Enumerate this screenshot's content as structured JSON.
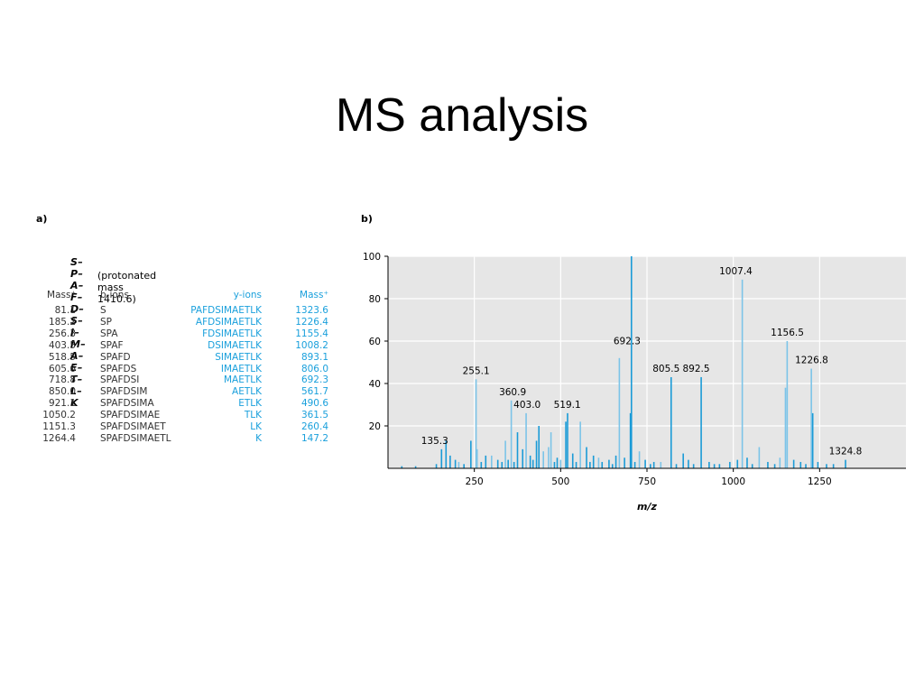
{
  "slide": {
    "title": "MS analysis"
  },
  "panel_a": {
    "label": "a)",
    "peptide": "S–P–A–F–D–S–I–M–A–E–T–L–K",
    "protonated_mass": "(protonated mass 1410.6)",
    "headers": {
      "b_mass": "Mass⁺",
      "b_ions": "b-ions",
      "y_ions": "y-ions",
      "y_mass": "Mass⁺"
    },
    "rows": [
      {
        "b_mass": "81.1",
        "b_ion": "S",
        "y_ion": "PAFDSIMAETLK",
        "y_mass": "1323.6"
      },
      {
        "b_mass": "185.2",
        "b_ion": "SP",
        "y_ion": "AFDSIMAETLK",
        "y_mass": "1226.4"
      },
      {
        "b_mass": "256.3",
        "b_ion": "SPA",
        "y_ion": "FDSIMAETLK",
        "y_mass": "1155.4"
      },
      {
        "b_mass": "403.5",
        "b_ion": "SPAF",
        "y_ion": "DSIMAETLK",
        "y_mass": "1008.2"
      },
      {
        "b_mass": "518.5",
        "b_ion": "SPAFD",
        "y_ion": "SIMAETLK",
        "y_mass": "893.1"
      },
      {
        "b_mass": "605.6",
        "b_ion": "SPAFDS",
        "y_ion": "IMAETLK",
        "y_mass": "806.0"
      },
      {
        "b_mass": "718.8",
        "b_ion": "SPAFDSI",
        "y_ion": "MAETLK",
        "y_mass": "692.3"
      },
      {
        "b_mass": "850.0",
        "b_ion": "SPAFDSIM",
        "y_ion": "AETLK",
        "y_mass": "561.7"
      },
      {
        "b_mass": "921.1",
        "b_ion": "SPAFDSIMA",
        "y_ion": "ETLK",
        "y_mass": "490.6"
      },
      {
        "b_mass": "1050.2",
        "b_ion": "SPAFDSIMAE",
        "y_ion": "TLK",
        "y_mass": "361.5"
      },
      {
        "b_mass": "1151.3",
        "b_ion": "SPAFDSIMAET",
        "y_ion": "LK",
        "y_mass": "260.4"
      },
      {
        "b_mass": "1264.4",
        "b_ion": "SPAFDSIMAETL",
        "y_ion": "K",
        "y_mass": "147.2"
      }
    ]
  },
  "chart_data": {
    "type": "bar",
    "panel_label": "b)",
    "title": "",
    "xlabel": "m/z",
    "ylabel": "",
    "xlim": [
      0,
      1500
    ],
    "ylim": [
      0,
      100
    ],
    "xticks": [
      250,
      500,
      750,
      1000,
      1250
    ],
    "yticks": [
      20,
      40,
      60,
      80,
      100
    ],
    "grid": true,
    "colors": {
      "bar": "#1a9bd7",
      "bar_light": "#7cc4e8",
      "plot_bg": "#e6e6e6",
      "grid": "#ffffff"
    },
    "labeled_peaks": [
      {
        "x": 135.3,
        "y": 9,
        "label": "135.3"
      },
      {
        "x": 255.1,
        "y": 42,
        "label": "255.1"
      },
      {
        "x": 360.9,
        "y": 32,
        "label": "360.9"
      },
      {
        "x": 403.0,
        "y": 26,
        "label": "403.0"
      },
      {
        "x": 519.1,
        "y": 26,
        "label": "519.1"
      },
      {
        "x": 692.3,
        "y": 56,
        "label": "692.3"
      },
      {
        "x": 805.5,
        "y": 43,
        "label": "805.5"
      },
      {
        "x": 892.5,
        "y": 43,
        "label": "892.5"
      },
      {
        "x": 1007.4,
        "y": 89,
        "label": "1007.4"
      },
      {
        "x": 1156.5,
        "y": 60,
        "label": "1156.5"
      },
      {
        "x": 1226.8,
        "y": 47,
        "label": "1226.8"
      },
      {
        "x": 1324.8,
        "y": 4,
        "label": "1324.8"
      }
    ],
    "peaks": [
      {
        "x": 705,
        "y": 100,
        "tone": "dark"
      },
      {
        "x": 702,
        "y": 26,
        "tone": "dark"
      },
      {
        "x": 670,
        "y": 52,
        "tone": "light"
      },
      {
        "x": 1026,
        "y": 89,
        "tone": "light"
      },
      {
        "x": 1156,
        "y": 60,
        "tone": "light"
      },
      {
        "x": 1151,
        "y": 38,
        "tone": "light"
      },
      {
        "x": 1226,
        "y": 47,
        "tone": "light"
      },
      {
        "x": 1230,
        "y": 26,
        "tone": "dark"
      },
      {
        "x": 820,
        "y": 43,
        "tone": "dark"
      },
      {
        "x": 907,
        "y": 43,
        "tone": "dark"
      },
      {
        "x": 255,
        "y": 42,
        "tone": "light"
      },
      {
        "x": 357,
        "y": 32,
        "tone": "light"
      },
      {
        "x": 400,
        "y": 26,
        "tone": "light"
      },
      {
        "x": 520,
        "y": 26,
        "tone": "dark"
      },
      {
        "x": 515,
        "y": 22,
        "tone": "dark"
      },
      {
        "x": 557,
        "y": 22,
        "tone": "light"
      },
      {
        "x": 375,
        "y": 17,
        "tone": "dark"
      },
      {
        "x": 437,
        "y": 20,
        "tone": "dark"
      },
      {
        "x": 430,
        "y": 13,
        "tone": "dark"
      },
      {
        "x": 465,
        "y": 10,
        "tone": "light"
      },
      {
        "x": 472,
        "y": 17,
        "tone": "light"
      },
      {
        "x": 340,
        "y": 13,
        "tone": "light"
      },
      {
        "x": 240,
        "y": 13,
        "tone": "dark"
      },
      {
        "x": 258,
        "y": 9,
        "tone": "light"
      },
      {
        "x": 168,
        "y": 13,
        "tone": "dark"
      },
      {
        "x": 155,
        "y": 9,
        "tone": "dark"
      },
      {
        "x": 180,
        "y": 6,
        "tone": "dark"
      },
      {
        "x": 195,
        "y": 4,
        "tone": "dark"
      },
      {
        "x": 283,
        "y": 6,
        "tone": "dark"
      },
      {
        "x": 300,
        "y": 6,
        "tone": "light"
      },
      {
        "x": 318,
        "y": 4,
        "tone": "dark"
      },
      {
        "x": 390,
        "y": 9,
        "tone": "dark"
      },
      {
        "x": 412,
        "y": 6,
        "tone": "dark"
      },
      {
        "x": 450,
        "y": 8,
        "tone": "light"
      },
      {
        "x": 490,
        "y": 5,
        "tone": "dark"
      },
      {
        "x": 535,
        "y": 7,
        "tone": "dark"
      },
      {
        "x": 575,
        "y": 10,
        "tone": "dark"
      },
      {
        "x": 595,
        "y": 6,
        "tone": "dark"
      },
      {
        "x": 610,
        "y": 5,
        "tone": "light"
      },
      {
        "x": 640,
        "y": 4,
        "tone": "dark"
      },
      {
        "x": 660,
        "y": 6,
        "tone": "dark"
      },
      {
        "x": 685,
        "y": 5,
        "tone": "dark"
      },
      {
        "x": 728,
        "y": 8,
        "tone": "light"
      },
      {
        "x": 745,
        "y": 4,
        "tone": "dark"
      },
      {
        "x": 770,
        "y": 3,
        "tone": "dark"
      },
      {
        "x": 790,
        "y": 3,
        "tone": "light"
      },
      {
        "x": 855,
        "y": 7,
        "tone": "dark"
      },
      {
        "x": 870,
        "y": 4,
        "tone": "dark"
      },
      {
        "x": 930,
        "y": 3,
        "tone": "dark"
      },
      {
        "x": 960,
        "y": 2,
        "tone": "dark"
      },
      {
        "x": 990,
        "y": 3,
        "tone": "dark"
      },
      {
        "x": 1012,
        "y": 4,
        "tone": "dark"
      },
      {
        "x": 1040,
        "y": 5,
        "tone": "dark"
      },
      {
        "x": 1075,
        "y": 10,
        "tone": "light"
      },
      {
        "x": 1100,
        "y": 3,
        "tone": "dark"
      },
      {
        "x": 1135,
        "y": 5,
        "tone": "light"
      },
      {
        "x": 1175,
        "y": 4,
        "tone": "dark"
      },
      {
        "x": 1195,
        "y": 3,
        "tone": "dark"
      },
      {
        "x": 1245,
        "y": 3,
        "tone": "dark"
      },
      {
        "x": 1270,
        "y": 2,
        "tone": "dark"
      },
      {
        "x": 1325,
        "y": 4,
        "tone": "dark"
      },
      {
        "x": 40,
        "y": 1,
        "tone": "dark"
      },
      {
        "x": 80,
        "y": 1,
        "tone": "dark"
      },
      {
        "x": 140,
        "y": 2,
        "tone": "dark"
      },
      {
        "x": 205,
        "y": 3,
        "tone": "light"
      },
      {
        "x": 220,
        "y": 2,
        "tone": "dark"
      },
      {
        "x": 270,
        "y": 3,
        "tone": "dark"
      },
      {
        "x": 330,
        "y": 3,
        "tone": "dark"
      },
      {
        "x": 348,
        "y": 4,
        "tone": "dark"
      },
      {
        "x": 365,
        "y": 3,
        "tone": "dark"
      },
      {
        "x": 420,
        "y": 4,
        "tone": "dark"
      },
      {
        "x": 482,
        "y": 3,
        "tone": "dark"
      },
      {
        "x": 500,
        "y": 4,
        "tone": "light"
      },
      {
        "x": 545,
        "y": 3,
        "tone": "dark"
      },
      {
        "x": 585,
        "y": 3,
        "tone": "dark"
      },
      {
        "x": 620,
        "y": 3,
        "tone": "dark"
      },
      {
        "x": 650,
        "y": 2,
        "tone": "dark"
      },
      {
        "x": 715,
        "y": 3,
        "tone": "dark"
      },
      {
        "x": 760,
        "y": 2,
        "tone": "dark"
      },
      {
        "x": 835,
        "y": 2,
        "tone": "dark"
      },
      {
        "x": 885,
        "y": 2,
        "tone": "dark"
      },
      {
        "x": 945,
        "y": 2,
        "tone": "dark"
      },
      {
        "x": 1055,
        "y": 2,
        "tone": "dark"
      },
      {
        "x": 1120,
        "y": 2,
        "tone": "dark"
      },
      {
        "x": 1210,
        "y": 2,
        "tone": "dark"
      },
      {
        "x": 1290,
        "y": 2,
        "tone": "dark"
      }
    ]
  }
}
